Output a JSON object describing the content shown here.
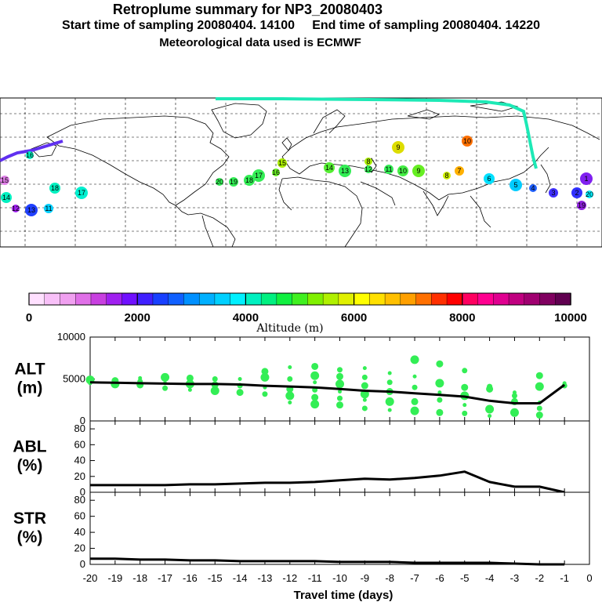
{
  "header": {
    "title": "Retroplume summary for NP3_20080403",
    "subtitle": "Start time of sampling 20080404. 14100     End time of sampling 20080404. 14220",
    "met_line": "Meteorological data used is ECMWF"
  },
  "map": {
    "label_color": "#000000",
    "plume_path_color": "#1de9b6",
    "cluster_labels": [
      "20",
      "19",
      "18",
      "17",
      "16",
      "15",
      "14",
      "13",
      "12",
      "11",
      "10",
      "9",
      "8",
      "7",
      "6",
      "5",
      "4",
      "3",
      "2",
      "1"
    ]
  },
  "colorbar": {
    "title": "Altitude (m)",
    "ticks": [
      "0",
      "2000",
      "4000",
      "6000",
      "8000",
      "10000"
    ],
    "colors": [
      "#ffe0ff",
      "#f8c0f8",
      "#f0a0f0",
      "#e070e8",
      "#c840e0",
      "#a020f0",
      "#7010ff",
      "#4020ff",
      "#1840ff",
      "#1060ff",
      "#0090ff",
      "#00b0ff",
      "#00d0ff",
      "#00f0ff",
      "#00f0c0",
      "#00f080",
      "#10f040",
      "#40f020",
      "#80f000",
      "#b0f000",
      "#e0f000",
      "#ffff00",
      "#ffe000",
      "#ffc000",
      "#ffa000",
      "#ff7000",
      "#ff3000",
      "#ff0000",
      "#ff0060",
      "#ff0090",
      "#e00090",
      "#c00080",
      "#a00070",
      "#800060",
      "#600050"
    ]
  },
  "chart_data": [
    {
      "type": "line",
      "panel": "ALT",
      "ylabel": "ALT\n(m)",
      "ylabel_lines": [
        "ALT",
        "(m)"
      ],
      "ylim": [
        0,
        10000
      ],
      "yticks": [
        "0",
        "5000",
        "10000"
      ],
      "x": [
        -20,
        -19,
        -18,
        -17,
        -16,
        -15,
        -14,
        -13,
        -12,
        -11,
        -10,
        -9,
        -8,
        -7,
        -6,
        -5,
        -4,
        -3,
        -2,
        -1
      ],
      "series": [
        {
          "name": "mean altitude",
          "values": [
            4600,
            4550,
            4500,
            4450,
            4400,
            4400,
            4350,
            4200,
            4100,
            4000,
            3800,
            3600,
            3500,
            3300,
            3100,
            2900,
            2400,
            2100,
            2100,
            4300
          ]
        }
      ],
      "scatter_color": "#33ee55",
      "scatter": [
        {
          "x": -20,
          "y": [
            4500,
            4900
          ]
        },
        {
          "x": -19,
          "y": [
            4400,
            4800
          ]
        },
        {
          "x": -18,
          "y": [
            4300,
            4700,
            5100
          ]
        },
        {
          "x": -17,
          "y": [
            3900,
            4500,
            5200
          ]
        },
        {
          "x": -16,
          "y": [
            3700,
            4400,
            5100
          ]
        },
        {
          "x": -15,
          "y": [
            3600,
            4300,
            5000
          ]
        },
        {
          "x": -14,
          "y": [
            3400,
            4200,
            5000
          ]
        },
        {
          "x": -13,
          "y": [
            3200,
            4000,
            5200,
            5900
          ]
        },
        {
          "x": -12,
          "y": [
            2200,
            3000,
            3800,
            5000,
            6400
          ]
        },
        {
          "x": -11,
          "y": [
            2000,
            2800,
            3700,
            4600,
            5400,
            6500
          ]
        },
        {
          "x": -10,
          "y": [
            1900,
            2700,
            3500,
            4400,
            5300,
            6100
          ]
        },
        {
          "x": -9,
          "y": [
            1500,
            2500,
            3200,
            4200,
            5200,
            6300
          ]
        },
        {
          "x": -8,
          "y": [
            1300,
            2300,
            3500,
            4600,
            5700
          ]
        },
        {
          "x": -7,
          "y": [
            1200,
            2300,
            4000,
            5300,
            7300
          ]
        },
        {
          "x": -6,
          "y": [
            1000,
            2500,
            3400,
            4500,
            6800
          ]
        },
        {
          "x": -5,
          "y": [
            900,
            1900,
            3000,
            4000,
            6000
          ]
        },
        {
          "x": -4,
          "y": [
            600,
            1400,
            3800,
            4100
          ]
        },
        {
          "x": -3,
          "y": [
            1000,
            2300,
            3000,
            3400
          ]
        },
        {
          "x": -2,
          "y": [
            700,
            1500,
            2200,
            4100,
            5400
          ]
        },
        {
          "x": -1,
          "y": [
            4200,
            4500
          ]
        }
      ]
    },
    {
      "type": "line",
      "panel": "ABL",
      "ylabel": "ABL\n(%)",
      "ylabel_lines": [
        "ABL",
        "(%)"
      ],
      "ylim": [
        0,
        90
      ],
      "yticks": [
        "0",
        "20",
        "40",
        "60",
        "80"
      ],
      "x": [
        -20,
        -19,
        -18,
        -17,
        -16,
        -15,
        -14,
        -13,
        -12,
        -11,
        -10,
        -9,
        -8,
        -7,
        -6,
        -5,
        -4,
        -3,
        -2,
        -1
      ],
      "series": [
        {
          "name": "ABL fraction",
          "values": [
            9,
            9,
            9,
            9,
            10,
            10,
            11,
            12,
            12,
            13,
            15,
            17,
            16,
            18,
            21,
            26,
            13,
            7,
            7,
            0
          ]
        }
      ]
    },
    {
      "type": "line",
      "panel": "STR",
      "ylabel": "STR\n(%)",
      "ylabel_lines": [
        "STR",
        "(%)"
      ],
      "ylim": [
        0,
        90
      ],
      "yticks": [
        "0",
        "20",
        "40",
        "60",
        "80"
      ],
      "xlabel": "Travel time (days)",
      "xticks": [
        "-20",
        "-19",
        "-18",
        "-17",
        "-16",
        "-15",
        "-14",
        "-13",
        "-12",
        "-11",
        "-10",
        "-9",
        "-8",
        "-7",
        "-6",
        "-5",
        "-4",
        "-3",
        "-2",
        "-1",
        "0"
      ],
      "x": [
        -20,
        -19,
        -18,
        -17,
        -16,
        -15,
        -14,
        -13,
        -12,
        -11,
        -10,
        -9,
        -8,
        -7,
        -6,
        -5,
        -4,
        -3,
        -2,
        -1
      ],
      "series": [
        {
          "name": "stratospheric fraction",
          "values": [
            7,
            7,
            6,
            6,
            5,
            5,
            4,
            4,
            4,
            4,
            3,
            3,
            3,
            2,
            2,
            2,
            2,
            1,
            0,
            0
          ]
        }
      ]
    }
  ]
}
